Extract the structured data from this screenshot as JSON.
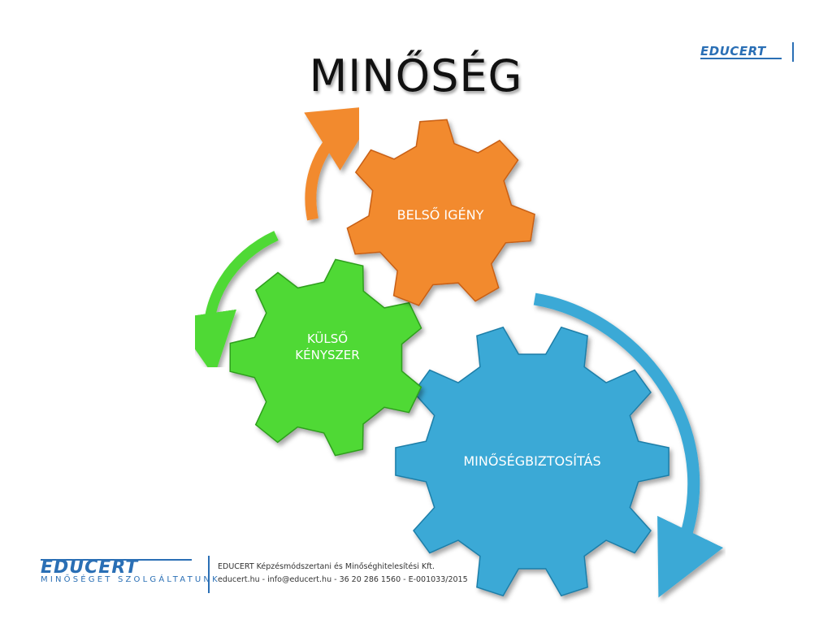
{
  "slide": {
    "title": "MINŐSÉG"
  },
  "diagram": {
    "gears": [
      {
        "id": "gear-belso-igeny",
        "lines": [
          "BELSŐ IGÉNY"
        ],
        "color": "#F28A2E",
        "dark": "#C85F12"
      },
      {
        "id": "gear-kulso-kenyszer",
        "lines": [
          "KÜLSŐ",
          "KÉNYSZER"
        ],
        "color": "#4FD936",
        "dark": "#2E9E1D"
      },
      {
        "id": "gear-minosegbiztositas",
        "lines": [
          "MINŐSÉGBIZTOSÍTÁS"
        ],
        "color": "#3BA9D6",
        "dark": "#1F7EA8"
      }
    ],
    "arrows": [
      {
        "id": "arrow-orange",
        "color": "#F28A2E"
      },
      {
        "id": "arrow-green",
        "color": "#4FD936"
      },
      {
        "id": "arrow-blue",
        "color": "#3BA9D6"
      }
    ]
  },
  "brand": {
    "logo_text": "EDUCERT",
    "tagline": "MINŐSÉGET SZOLGÁLTATUNK",
    "color": "#2A6FB5"
  },
  "footer": {
    "company": "EDUCERT Képzésmódszertani és Minőséghitelesítési Kft.",
    "contact": "educert.hu  -  info@educert.hu  -  36 20 286 1560  -  E-001033/2015"
  }
}
